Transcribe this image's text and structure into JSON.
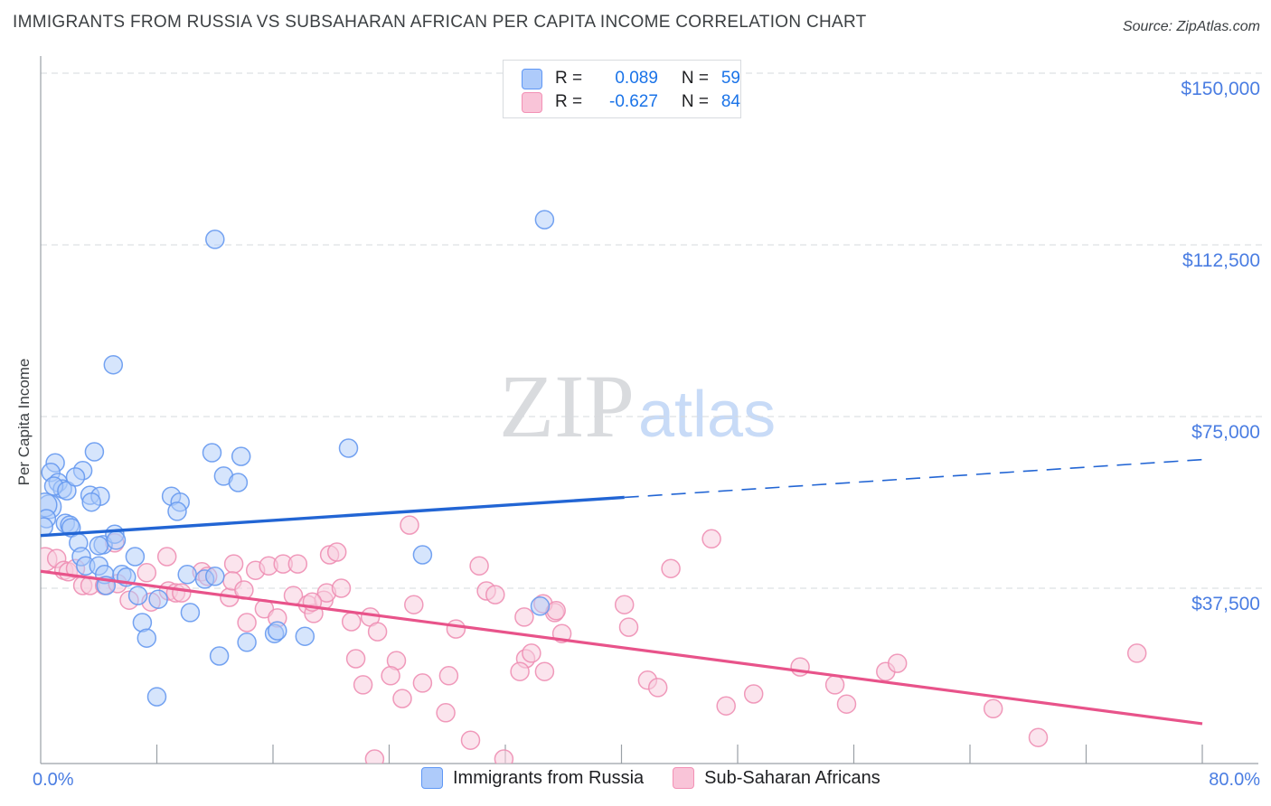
{
  "header": {
    "title": "IMMIGRANTS FROM RUSSIA VS SUBSAHARAN AFRICAN PER CAPITA INCOME CORRELATION CHART",
    "source": "Source: ZipAtlas.com"
  },
  "watermark": {
    "zip": "ZIP",
    "atlas": "atlas"
  },
  "axes": {
    "y_title": "Per Capita Income",
    "x_min_label": "0.0%",
    "x_max_label": "80.0%"
  },
  "legend_box": {
    "rows": [
      {
        "series": "Immigrants from Russia",
        "r_label": "R =",
        "r_value": "0.089",
        "n_label": "N =",
        "n_value": "59"
      },
      {
        "series": "Sub-Saharan Africans",
        "r_label": "R =",
        "r_value": "-0.627",
        "n_label": "N =",
        "n_value": "84"
      }
    ]
  },
  "bottom_legend": [
    {
      "label": "Immigrants from Russia"
    },
    {
      "label": "Sub-Saharan Africans"
    }
  ],
  "colors": {
    "blue_point_fill": "#aecbfa",
    "blue_point_stroke": "#6699f0",
    "pink_point_fill": "#f8cede",
    "pink_point_stroke": "#ee8fb4",
    "blue_trend": "#2265d4",
    "pink_trend": "#e8538a",
    "axis_label_blue": "#4a7de2",
    "grid": "#d6d9dd",
    "axis": "#9aa0a6",
    "legend_value_blue": "#1a73e8",
    "title_gray": "#3c4043"
  },
  "chart_data": {
    "type": "scatter",
    "title": "IMMIGRANTS FROM RUSSIA VS SUBSAHARAN AFRICAN PER CAPITA INCOME CORRELATION CHART",
    "xlabel": "Immigrants from Russia / Sub-Saharan Africans (%)",
    "ylabel": "Per Capita Income",
    "x_range": [
      0,
      80
    ],
    "y_range": [
      0,
      150000
    ],
    "grid": "dashed-horizontal",
    "legend_position": "top-center and bottom-center",
    "y_ticks": [
      {
        "value": 150000,
        "label": "$150,000"
      },
      {
        "value": 112500,
        "label": "$112,500"
      },
      {
        "value": 75000,
        "label": "$75,000"
      },
      {
        "value": 37500,
        "label": "$37,500"
      }
    ],
    "x_tick_percents": [
      8,
      16,
      24,
      32,
      40,
      48,
      56,
      64,
      72,
      80
    ],
    "series": [
      {
        "name": "Immigrants from Russia",
        "R": 0.089,
        "N": 59,
        "trend": {
          "x0": 0,
          "y0": 49000,
          "x1": 80,
          "y1": 65600,
          "solid_to_pct": 40.2
        },
        "points": [
          [
            1.0,
            64900
          ],
          [
            0.7,
            62800
          ],
          [
            2.9,
            63200
          ],
          [
            1.2,
            60600
          ],
          [
            1.5,
            59200
          ],
          [
            0.9,
            59800
          ],
          [
            1.8,
            58800
          ],
          [
            2.4,
            61800
          ],
          [
            3.4,
            57800
          ],
          [
            4.1,
            57600
          ],
          [
            3.5,
            56300
          ],
          [
            0.6,
            55300,
            13
          ],
          [
            0.3,
            55700,
            13
          ],
          [
            0.4,
            52700
          ],
          [
            0.2,
            50900
          ],
          [
            1.7,
            51700
          ],
          [
            2.0,
            51300
          ],
          [
            2.1,
            50700
          ],
          [
            2.6,
            47400
          ],
          [
            4.3,
            47000
          ],
          [
            5.1,
            49300
          ],
          [
            5.2,
            48000
          ],
          [
            4.0,
            46800
          ],
          [
            3.7,
            67300
          ],
          [
            5.0,
            86300
          ],
          [
            12.0,
            113700
          ],
          [
            34.7,
            118000
          ],
          [
            21.2,
            68100
          ],
          [
            9.0,
            57600
          ],
          [
            9.6,
            56300
          ],
          [
            9.4,
            54300
          ],
          [
            11.8,
            67100
          ],
          [
            13.8,
            66300
          ],
          [
            12.6,
            62000
          ],
          [
            13.6,
            60600
          ],
          [
            2.8,
            44400
          ],
          [
            6.5,
            44400
          ],
          [
            3.1,
            42400
          ],
          [
            4.0,
            42400
          ],
          [
            4.4,
            40500
          ],
          [
            5.6,
            40500
          ],
          [
            5.9,
            39900
          ],
          [
            4.5,
            38100
          ],
          [
            6.7,
            35900
          ],
          [
            8.1,
            35100
          ],
          [
            7.0,
            30000
          ],
          [
            7.3,
            26600
          ],
          [
            10.1,
            40500
          ],
          [
            10.3,
            32200
          ],
          [
            11.3,
            39500
          ],
          [
            12.0,
            40100
          ],
          [
            12.3,
            22700
          ],
          [
            14.2,
            25700
          ],
          [
            16.1,
            27600
          ],
          [
            16.3,
            28200
          ],
          [
            18.2,
            27000
          ],
          [
            8.0,
            13800
          ],
          [
            26.3,
            44800
          ],
          [
            34.4,
            33600
          ]
        ]
      },
      {
        "name": "Sub-Saharan Africans",
        "R": -0.627,
        "N": 84,
        "trend": {
          "x0": 0,
          "y0": 41200,
          "x1": 80,
          "y1": 7900,
          "solid_to_pct": 80
        },
        "points": [
          [
            0.3,
            43800,
            13
          ],
          [
            1.1,
            44000
          ],
          [
            1.6,
            41400
          ],
          [
            1.9,
            41100
          ],
          [
            2.4,
            41800
          ],
          [
            2.9,
            38100
          ],
          [
            3.4,
            38100
          ],
          [
            4.4,
            38100
          ],
          [
            5.1,
            47400
          ],
          [
            5.3,
            38500
          ],
          [
            6.1,
            34900
          ],
          [
            7.3,
            40900
          ],
          [
            7.6,
            34500
          ],
          [
            8.7,
            44400
          ],
          [
            8.8,
            36900
          ],
          [
            9.3,
            36500
          ],
          [
            9.7,
            36500
          ],
          [
            11.1,
            41100
          ],
          [
            11.5,
            40100
          ],
          [
            13.0,
            35500
          ],
          [
            13.3,
            42800
          ],
          [
            13.2,
            39100
          ],
          [
            14.0,
            37100
          ],
          [
            14.2,
            30000
          ],
          [
            14.8,
            41400
          ],
          [
            15.4,
            33000
          ],
          [
            15.7,
            42400
          ],
          [
            16.3,
            31000
          ],
          [
            16.7,
            42800
          ],
          [
            17.4,
            35900
          ],
          [
            17.7,
            42800
          ],
          [
            18.4,
            33900
          ],
          [
            18.8,
            32000
          ],
          [
            19.5,
            34900
          ],
          [
            19.9,
            44800
          ],
          [
            20.4,
            45400
          ],
          [
            19.7,
            36500
          ],
          [
            20.7,
            37500
          ],
          [
            18.7,
            34500
          ],
          [
            21.4,
            30200
          ],
          [
            22.7,
            31200
          ],
          [
            23.2,
            28000
          ],
          [
            25.4,
            51300
          ],
          [
            25.7,
            33900
          ],
          [
            28.6,
            28600
          ],
          [
            30.2,
            42400
          ],
          [
            30.7,
            36900
          ],
          [
            31.3,
            36100
          ],
          [
            33.3,
            31200
          ],
          [
            35.4,
            32200
          ],
          [
            35.9,
            27600
          ],
          [
            21.7,
            22100
          ],
          [
            24.5,
            21700
          ],
          [
            24.1,
            18400
          ],
          [
            22.2,
            16400
          ],
          [
            24.9,
            13400
          ],
          [
            26.3,
            16800
          ],
          [
            28.1,
            18400
          ],
          [
            33.4,
            22100
          ],
          [
            33.8,
            23300
          ],
          [
            33.0,
            19300
          ],
          [
            34.7,
            19300
          ],
          [
            27.9,
            10300
          ],
          [
            29.6,
            4300
          ],
          [
            31.9,
            200
          ],
          [
            23.0,
            200
          ],
          [
            34.6,
            34100
          ],
          [
            35.5,
            32600
          ],
          [
            40.2,
            33900
          ],
          [
            40.5,
            29000
          ],
          [
            41.8,
            17400
          ],
          [
            42.5,
            15800
          ],
          [
            43.4,
            41800
          ],
          [
            46.2,
            48300
          ],
          [
            47.2,
            11800
          ],
          [
            49.1,
            14400
          ],
          [
            52.3,
            20300
          ],
          [
            54.7,
            16400
          ],
          [
            55.5,
            12200
          ],
          [
            58.2,
            19300
          ],
          [
            59.0,
            21100
          ],
          [
            65.6,
            11200
          ],
          [
            68.7,
            4900
          ],
          [
            75.5,
            23300
          ]
        ]
      }
    ]
  }
}
